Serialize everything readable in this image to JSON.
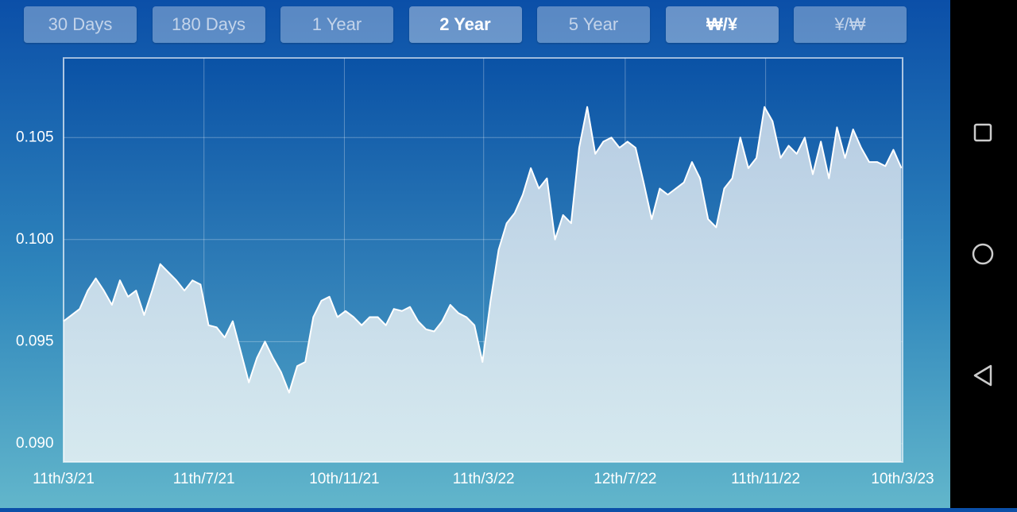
{
  "buttons": [
    "30 Days",
    "180 Days",
    "1 Year",
    "2 Year",
    "5 Year",
    "₩/¥",
    "¥/₩"
  ],
  "chart_data": {
    "type": "area",
    "color": "#ffffff",
    "grid": true,
    "x": [
      "2021-03-11",
      "2021-03-18",
      "2021-03-25",
      "2021-04-01",
      "2021-04-08",
      "2021-04-15",
      "2021-04-22",
      "2021-04-29",
      "2021-05-06",
      "2021-05-13",
      "2021-05-20",
      "2021-05-27",
      "2021-06-03",
      "2021-06-10",
      "2021-06-17",
      "2021-06-24",
      "2021-07-01",
      "2021-07-08",
      "2021-07-15",
      "2021-07-22",
      "2021-07-29",
      "2021-08-05",
      "2021-08-12",
      "2021-08-19",
      "2021-08-26",
      "2021-09-02",
      "2021-09-09",
      "2021-09-16",
      "2021-09-23",
      "2021-09-30",
      "2021-10-07",
      "2021-10-14",
      "2021-10-21",
      "2021-10-28",
      "2021-11-04",
      "2021-11-11",
      "2021-11-18",
      "2021-11-25",
      "2021-12-02",
      "2021-12-09",
      "2021-12-16",
      "2021-12-23",
      "2021-12-30",
      "2022-01-06",
      "2022-01-13",
      "2022-01-20",
      "2022-01-27",
      "2022-02-03",
      "2022-02-10",
      "2022-02-17",
      "2022-02-24",
      "2022-03-03",
      "2022-03-10",
      "2022-03-17",
      "2022-03-24",
      "2022-03-31",
      "2022-04-07",
      "2022-04-14",
      "2022-04-21",
      "2022-04-28",
      "2022-05-05",
      "2022-05-12",
      "2022-05-19",
      "2022-05-26",
      "2022-06-02",
      "2022-06-09",
      "2022-06-16",
      "2022-06-23",
      "2022-06-30",
      "2022-07-07",
      "2022-07-14",
      "2022-07-21",
      "2022-07-28",
      "2022-08-04",
      "2022-08-11",
      "2022-08-18",
      "2022-08-25",
      "2022-09-01",
      "2022-09-08",
      "2022-09-15",
      "2022-09-22",
      "2022-09-29",
      "2022-10-06",
      "2022-10-13",
      "2022-10-20",
      "2022-10-27",
      "2022-11-03",
      "2022-11-10",
      "2022-11-17",
      "2022-11-24",
      "2022-12-01",
      "2022-12-08",
      "2022-12-15",
      "2022-12-22",
      "2022-12-29",
      "2023-01-05",
      "2023-01-12",
      "2023-01-19",
      "2023-01-26",
      "2023-02-02",
      "2023-02-09",
      "2023-02-16",
      "2023-02-23",
      "2023-03-02",
      "2023-03-09"
    ],
    "values": [
      0.096,
      0.0963,
      0.0966,
      0.0975,
      0.0981,
      0.0975,
      0.0968,
      0.098,
      0.0972,
      0.0975,
      0.0963,
      0.0975,
      0.0988,
      0.0984,
      0.098,
      0.0975,
      0.098,
      0.0978,
      0.0958,
      0.0957,
      0.0952,
      0.096,
      0.0945,
      0.093,
      0.0942,
      0.095,
      0.0942,
      0.0935,
      0.0925,
      0.0938,
      0.094,
      0.0962,
      0.097,
      0.0972,
      0.0962,
      0.0965,
      0.0962,
      0.0958,
      0.0962,
      0.0962,
      0.0958,
      0.0966,
      0.0965,
      0.0967,
      0.096,
      0.0956,
      0.0955,
      0.096,
      0.0968,
      0.0964,
      0.0962,
      0.0958,
      0.094,
      0.097,
      0.0995,
      0.1008,
      0.1013,
      0.1022,
      0.1035,
      0.1025,
      0.103,
      0.1,
      0.1012,
      0.1008,
      0.1045,
      0.1065,
      0.1042,
      0.1048,
      0.105,
      0.1045,
      0.1048,
      0.1045,
      0.1028,
      0.101,
      0.1025,
      0.1022,
      0.1025,
      0.1028,
      0.1038,
      0.103,
      0.101,
      0.1006,
      0.1025,
      0.103,
      0.105,
      0.1035,
      0.104,
      0.1065,
      0.1058,
      0.104,
      0.1046,
      0.1042,
      0.105,
      0.1032,
      0.1048,
      0.103,
      0.1055,
      0.104,
      0.1054,
      0.1045,
      0.1038,
      0.1038,
      0.1036,
      0.1044,
      0.1035
    ],
    "xlim": [
      "2021-03-11",
      "2023-03-10"
    ],
    "xticks": [
      {
        "value": "2021-03-11",
        "label": "11th/3/21"
      },
      {
        "value": "2021-07-11",
        "label": "11th/7/21"
      },
      {
        "value": "2021-11-10",
        "label": "10th/11/21"
      },
      {
        "value": "2022-03-11",
        "label": "11th/3/22"
      },
      {
        "value": "2022-07-12",
        "label": "12th/7/22"
      },
      {
        "value": "2022-11-11",
        "label": "11th/11/22"
      },
      {
        "value": "2023-03-10",
        "label": "10th/3/23"
      }
    ],
    "ylim": [
      0.0891,
      0.1089
    ],
    "yticks": [
      {
        "value": 0.09,
        "label": "0.090"
      },
      0.095,
      {
        "value": 0.1,
        "label": "0.100"
      },
      0.105
    ]
  }
}
